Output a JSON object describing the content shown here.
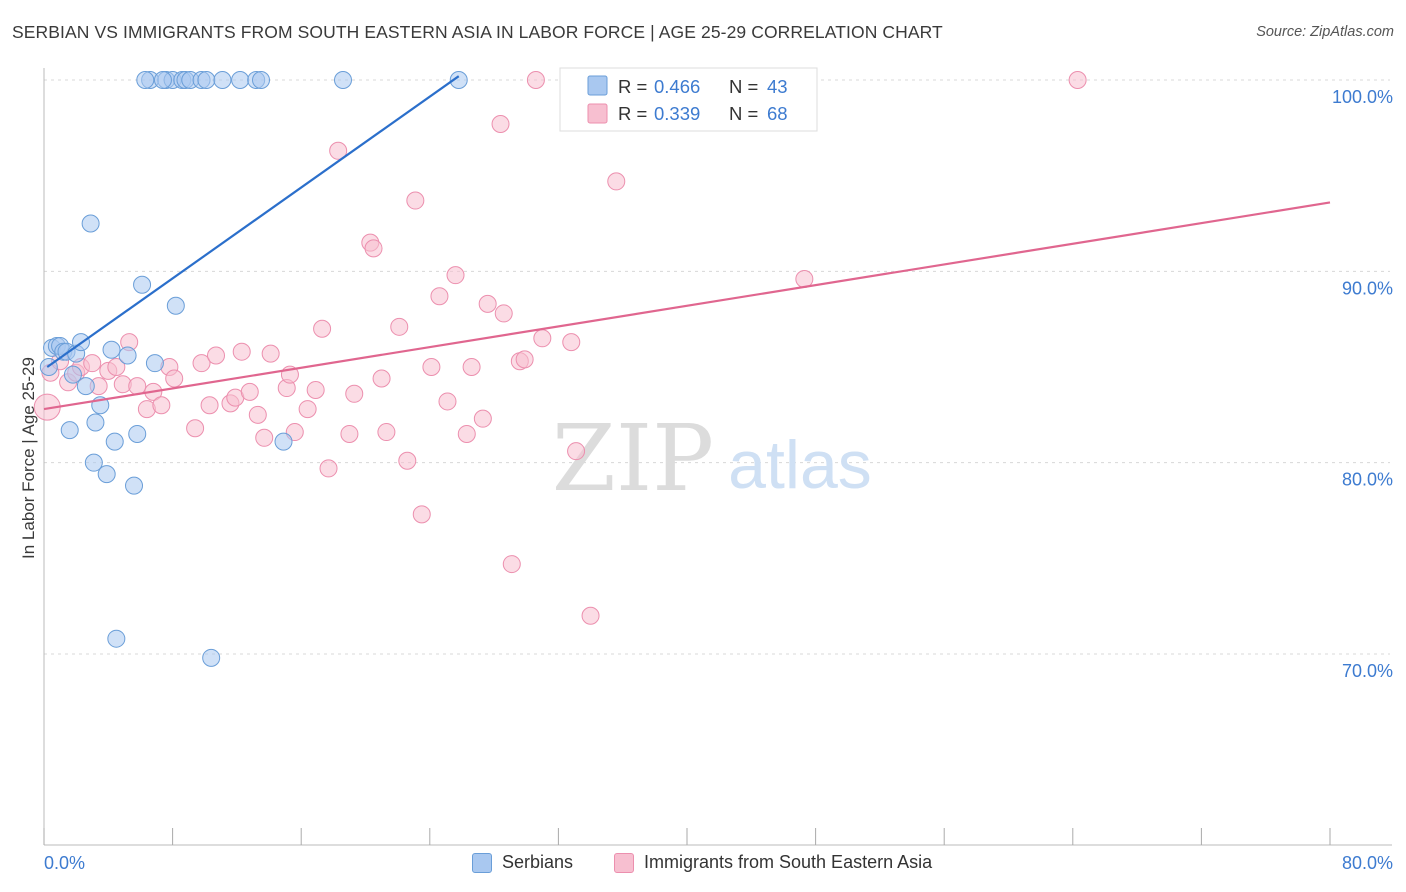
{
  "title": "SERBIAN VS IMMIGRANTS FROM SOUTH EASTERN ASIA IN LABOR FORCE | AGE 25-29 CORRELATION CHART",
  "source": "Source: ZipAtlas.com",
  "watermark": {
    "zip": "ZIP",
    "atlas": "atlas"
  },
  "colors": {
    "blue_fill": "#a9c8f0",
    "blue_stroke": "#6a9ed8",
    "blue_line": "#2b6fcb",
    "pink_fill": "#f7bfd0",
    "pink_stroke": "#ec8fae",
    "pink_line": "#e0668f",
    "axis_text": "#3d7bd0",
    "grid": "#d8d8d8"
  },
  "legend": {
    "series": [
      {
        "r_label": "R =",
        "r_value": "0.466",
        "n_label": "N =",
        "n_value": "43"
      },
      {
        "r_label": "R =",
        "r_value": "0.339",
        "n_label": "N =",
        "n_value": "68"
      }
    ]
  },
  "chart_data": {
    "type": "scatter",
    "title": "SERBIAN VS IMMIGRANTS FROM SOUTH EASTERN ASIA IN LABOR FORCE | AGE 25-29 CORRELATION CHART",
    "xlabel": "",
    "ylabel": "In Labor Force | Age 25-29",
    "xlim": [
      0,
      80
    ],
    "ylim": [
      60,
      101.5
    ],
    "x_tick_labels": [
      {
        "value": 0,
        "label": "0.0%"
      },
      {
        "value": 80,
        "label": "80.0%"
      }
    ],
    "y_tick_labels": [
      {
        "value": 100,
        "label": "100.0%"
      },
      {
        "value": 90,
        "label": "90.0%"
      },
      {
        "value": 80,
        "label": "80.0%"
      },
      {
        "value": 70,
        "label": "70.0%"
      }
    ],
    "series": [
      {
        "name": "Serbians",
        "color": "blue",
        "r": 0.466,
        "n": 43,
        "trend": {
          "x0": 0.2,
          "y0": 85.0,
          "x1": 25.8,
          "y1": 100.2
        },
        "points": [
          [
            0.3,
            85.0
          ],
          [
            0.5,
            86.0
          ],
          [
            0.8,
            86.1
          ],
          [
            1.0,
            86.1
          ],
          [
            1.2,
            85.8
          ],
          [
            1.4,
            85.8
          ],
          [
            1.6,
            81.7
          ],
          [
            1.8,
            84.6
          ],
          [
            2.0,
            85.7
          ],
          [
            2.3,
            86.3
          ],
          [
            2.6,
            84.0
          ],
          [
            2.9,
            92.5
          ],
          [
            3.1,
            80.0
          ],
          [
            3.2,
            82.1
          ],
          [
            3.5,
            83.0
          ],
          [
            3.9,
            79.4
          ],
          [
            4.2,
            85.9
          ],
          [
            4.4,
            81.1
          ],
          [
            4.5,
            70.8
          ],
          [
            5.2,
            85.6
          ],
          [
            5.6,
            78.8
          ],
          [
            5.8,
            81.5
          ],
          [
            6.1,
            89.3
          ],
          [
            6.6,
            100.0
          ],
          [
            6.9,
            85.2
          ],
          [
            7.6,
            100.0
          ],
          [
            8.0,
            100.0
          ],
          [
            8.2,
            88.2
          ],
          [
            8.6,
            100.0
          ],
          [
            8.8,
            100.0
          ],
          [
            9.1,
            100.0
          ],
          [
            9.8,
            100.0
          ],
          [
            10.1,
            100.0
          ],
          [
            10.4,
            69.8
          ],
          [
            11.1,
            100.0
          ],
          [
            12.2,
            100.0
          ],
          [
            13.2,
            100.0
          ],
          [
            13.5,
            100.0
          ],
          [
            14.9,
            81.1
          ],
          [
            18.6,
            100.0
          ],
          [
            25.8,
            100.0
          ],
          [
            7.4,
            100.0
          ],
          [
            6.3,
            100.0
          ]
        ]
      },
      {
        "name": "Immigrants from South Eastern Asia",
        "color": "pink",
        "r": 0.339,
        "n": 68,
        "trend": {
          "x0": 0.0,
          "y0": 82.8,
          "x1": 80.0,
          "y1": 93.6
        },
        "points": [
          [
            0.2,
            82.9
          ],
          [
            0.4,
            84.7
          ],
          [
            1.0,
            85.3
          ],
          [
            1.5,
            84.2
          ],
          [
            2.0,
            84.7
          ],
          [
            2.3,
            85.0
          ],
          [
            3.0,
            85.2
          ],
          [
            3.4,
            84.0
          ],
          [
            4.0,
            84.8
          ],
          [
            4.5,
            85.0
          ],
          [
            4.9,
            84.1
          ],
          [
            5.3,
            86.3
          ],
          [
            5.8,
            84.0
          ],
          [
            6.4,
            82.8
          ],
          [
            6.8,
            83.7
          ],
          [
            7.3,
            83.0
          ],
          [
            7.8,
            85.0
          ],
          [
            8.1,
            84.4
          ],
          [
            9.4,
            81.8
          ],
          [
            9.8,
            85.2
          ],
          [
            10.3,
            83.0
          ],
          [
            10.7,
            85.6
          ],
          [
            11.6,
            83.1
          ],
          [
            11.9,
            83.4
          ],
          [
            12.3,
            85.8
          ],
          [
            12.8,
            83.7
          ],
          [
            13.3,
            82.5
          ],
          [
            13.7,
            81.3
          ],
          [
            14.1,
            85.7
          ],
          [
            15.1,
            83.9
          ],
          [
            15.3,
            84.6
          ],
          [
            15.6,
            81.6
          ],
          [
            16.4,
            82.8
          ],
          [
            16.9,
            83.8
          ],
          [
            17.3,
            87.0
          ],
          [
            17.7,
            79.7
          ],
          [
            18.3,
            96.3
          ],
          [
            19.0,
            81.5
          ],
          [
            19.3,
            83.6
          ],
          [
            20.3,
            91.5
          ],
          [
            20.5,
            91.2
          ],
          [
            21.0,
            84.4
          ],
          [
            21.3,
            81.6
          ],
          [
            22.1,
            87.1
          ],
          [
            22.6,
            80.1
          ],
          [
            23.1,
            93.7
          ],
          [
            23.5,
            77.3
          ],
          [
            24.1,
            85.0
          ],
          [
            24.6,
            88.7
          ],
          [
            25.1,
            83.2
          ],
          [
            25.6,
            89.8
          ],
          [
            26.3,
            81.5
          ],
          [
            26.6,
            85.0
          ],
          [
            27.3,
            82.3
          ],
          [
            27.6,
            88.3
          ],
          [
            28.6,
            87.8
          ],
          [
            29.6,
            85.3
          ],
          [
            29.9,
            85.4
          ],
          [
            28.4,
            97.7
          ],
          [
            29.1,
            74.7
          ],
          [
            30.6,
            100.0
          ],
          [
            31.0,
            86.5
          ],
          [
            32.8,
            86.3
          ],
          [
            33.1,
            80.6
          ],
          [
            34.0,
            72.0
          ],
          [
            35.6,
            94.7
          ],
          [
            47.3,
            89.6
          ],
          [
            64.3,
            100.0
          ]
        ]
      }
    ]
  },
  "bottom_legend": [
    {
      "label": "Serbians"
    },
    {
      "label": "Immigrants from South Eastern Asia"
    }
  ]
}
